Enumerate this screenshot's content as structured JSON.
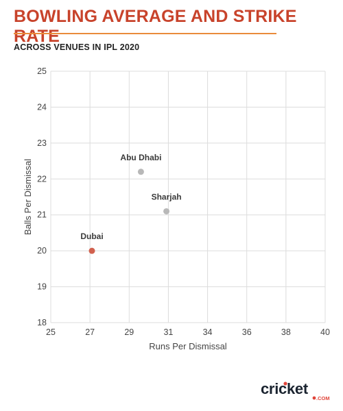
{
  "header": {
    "title": "BOWLING AVERAGE AND STRIKE RATE",
    "subtitle": "ACROSS VENUES IN IPL 2020"
  },
  "colors": {
    "title": "#c8432b",
    "rule": "#e98b3a",
    "highlight_point": "#d1614e",
    "point": "#b8b8b8",
    "grid": "#dcdcdc"
  },
  "chart_data": {
    "type": "scatter",
    "title": "BOWLING AVERAGE AND STRIKE RATE",
    "subtitle": "ACROSS VENUES IN IPL 2020",
    "xlabel": "Runs Per Dismissal",
    "ylabel": "Balls Per Dismissal",
    "xlim": [
      25,
      40
    ],
    "ylim": [
      18,
      25
    ],
    "x_ticks": [
      "25",
      "27",
      "29",
      "31",
      "34",
      "36",
      "38",
      "40"
    ],
    "y_ticks": [
      "18",
      "19",
      "20",
      "21",
      "22",
      "23",
      "24",
      "25"
    ],
    "grid": true,
    "points": [
      {
        "label": "Abu Dhabi",
        "x": 29.6,
        "y": 22.2,
        "highlight": false
      },
      {
        "label": "Sharjah",
        "x": 30.9,
        "y": 21.1,
        "highlight": false
      },
      {
        "label": "Dubai",
        "x": 27.1,
        "y": 20.0,
        "highlight": true
      }
    ]
  },
  "footer": {
    "logo_text": "cricket",
    "logo_sub": ".COM"
  }
}
